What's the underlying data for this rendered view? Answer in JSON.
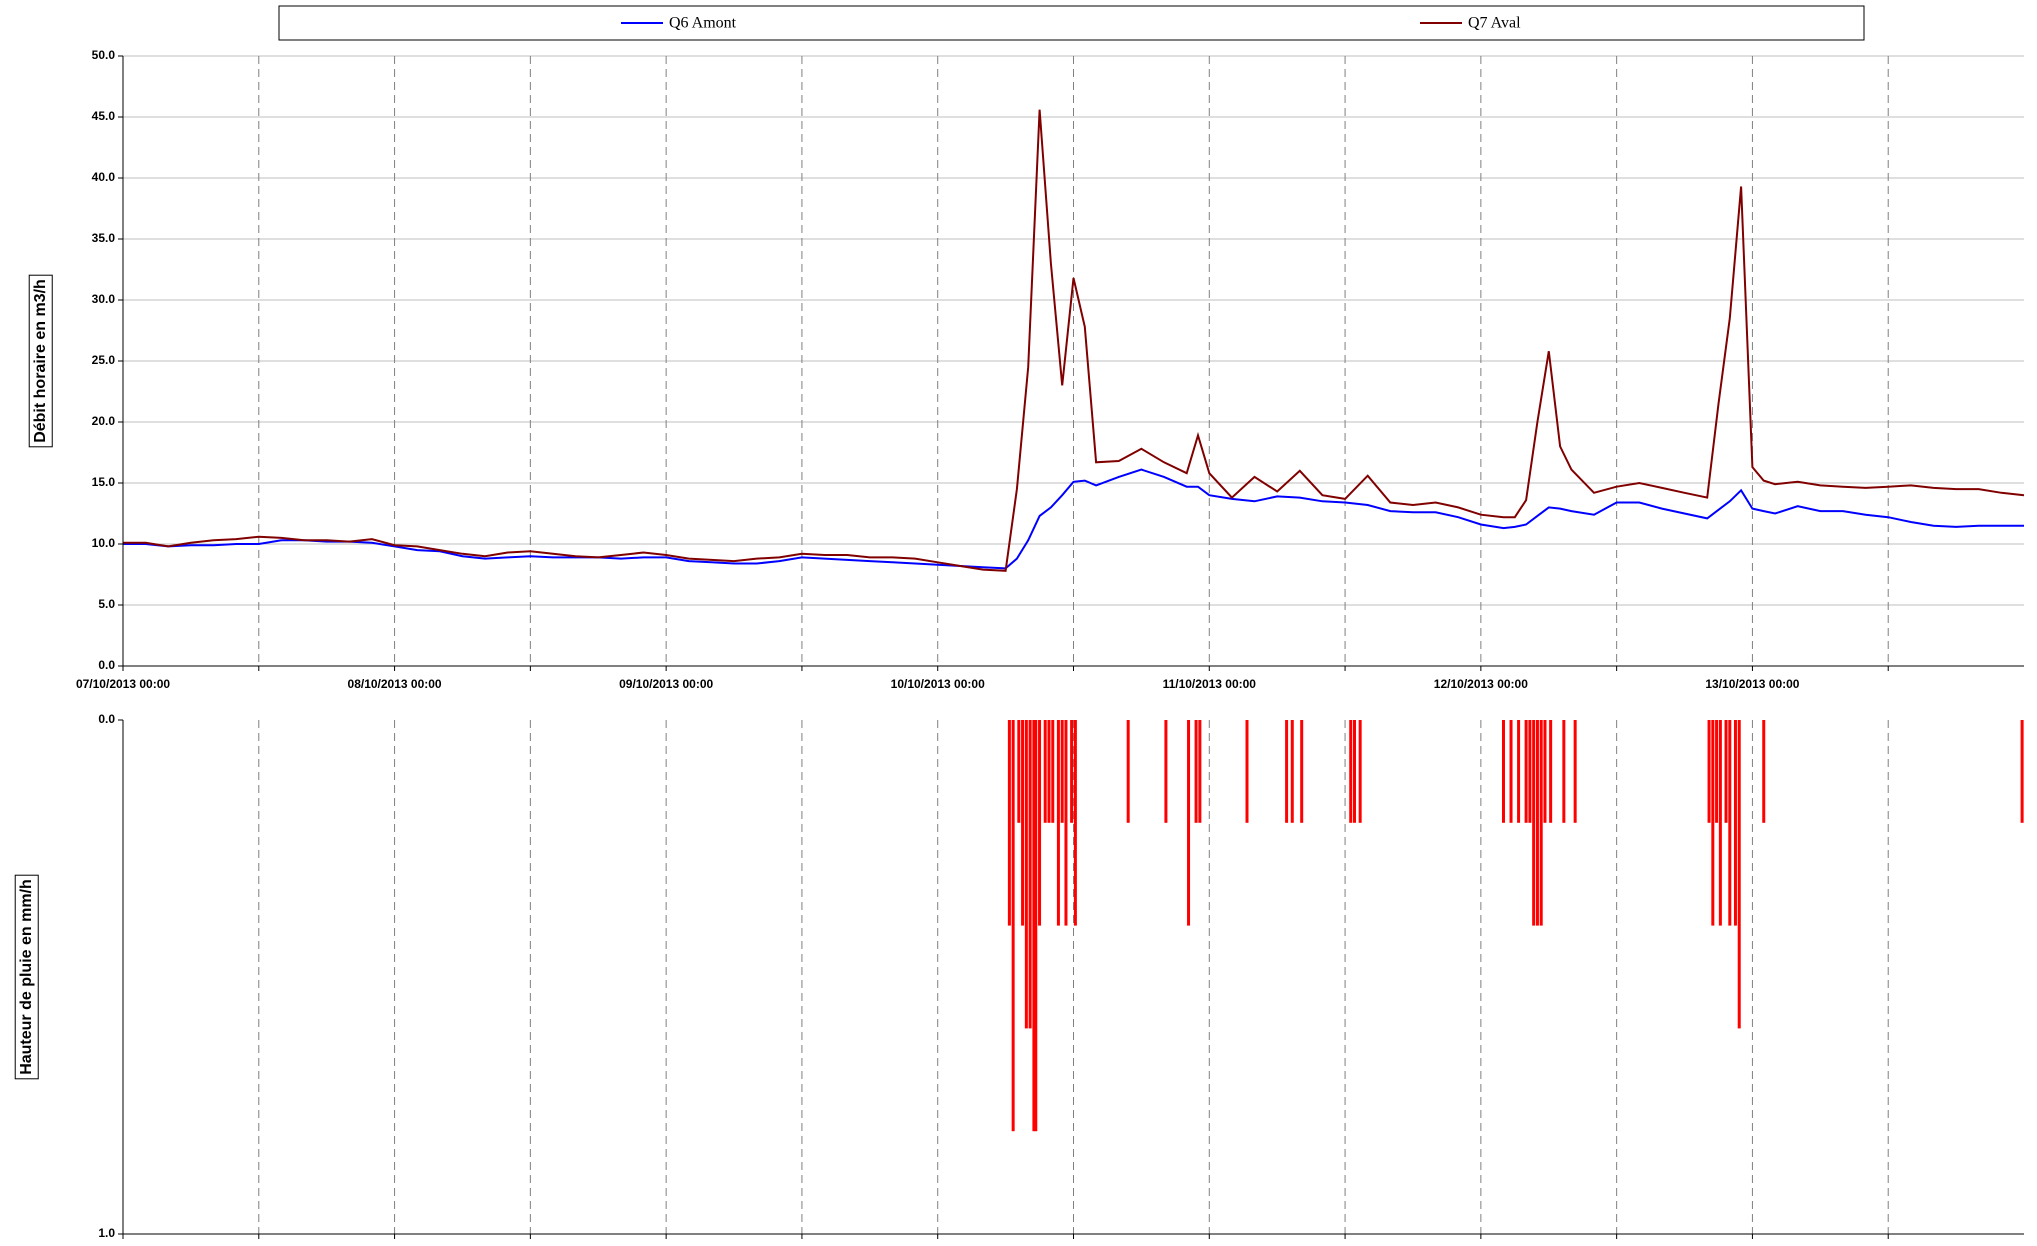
{
  "chart_data": [
    {
      "type": "line",
      "ylabel": "Débit horaire en m3/h",
      "legend": "top",
      "grid": true,
      "x": [
        "07/10/2013 00:00",
        "07/10/2013 02:00",
        "07/10/2013 04:00",
        "07/10/2013 06:00",
        "07/10/2013 08:00",
        "07/10/2013 10:00",
        "07/10/2013 12:00",
        "07/10/2013 14:00",
        "07/10/2013 16:00",
        "07/10/2013 18:00",
        "07/10/2013 20:00",
        "07/10/2013 22:00",
        "08/10/2013 00:00",
        "08/10/2013 02:00",
        "08/10/2013 04:00",
        "08/10/2013 06:00",
        "08/10/2013 08:00",
        "08/10/2013 10:00",
        "08/10/2013 12:00",
        "08/10/2013 14:00",
        "08/10/2013 16:00",
        "08/10/2013 18:00",
        "08/10/2013 20:00",
        "08/10/2013 22:00",
        "09/10/2013 00:00",
        "09/10/2013 02:00",
        "09/10/2013 04:00",
        "09/10/2013 06:00",
        "09/10/2013 08:00",
        "09/10/2013 10:00",
        "09/10/2013 12:00",
        "09/10/2013 14:00",
        "09/10/2013 16:00",
        "09/10/2013 18:00",
        "09/10/2013 20:00",
        "09/10/2013 22:00",
        "10/10/2013 00:00",
        "10/10/2013 02:00",
        "10/10/2013 04:00",
        "10/10/2013 06:00",
        "10/10/2013 07:00",
        "10/10/2013 08:00",
        "10/10/2013 09:00",
        "10/10/2013 10:00",
        "10/10/2013 11:00",
        "10/10/2013 12:00",
        "10/10/2013 13:00",
        "10/10/2013 14:00",
        "10/10/2013 16:00",
        "10/10/2013 18:00",
        "10/10/2013 20:00",
        "10/10/2013 22:00",
        "10/10/2013 23:00",
        "11/10/2013 00:00",
        "11/10/2013 02:00",
        "11/10/2013 04:00",
        "11/10/2013 06:00",
        "11/10/2013 08:00",
        "11/10/2013 10:00",
        "11/10/2013 12:00",
        "11/10/2013 14:00",
        "11/10/2013 16:00",
        "11/10/2013 18:00",
        "11/10/2013 20:00",
        "11/10/2013 22:00",
        "12/10/2013 00:00",
        "12/10/2013 02:00",
        "12/10/2013 03:00",
        "12/10/2013 04:00",
        "12/10/2013 05:00",
        "12/10/2013 06:00",
        "12/10/2013 07:00",
        "12/10/2013 08:00",
        "12/10/2013 10:00",
        "12/10/2013 12:00",
        "12/10/2013 14:00",
        "12/10/2013 16:00",
        "12/10/2013 18:00",
        "12/10/2013 20:00",
        "12/10/2013 21:00",
        "12/10/2013 22:00",
        "12/10/2013 23:00",
        "13/10/2013 00:00",
        "13/10/2013 01:00",
        "13/10/2013 02:00",
        "13/10/2013 04:00",
        "13/10/2013 06:00",
        "13/10/2013 08:00",
        "13/10/2013 10:00",
        "13/10/2013 12:00",
        "13/10/2013 14:00",
        "13/10/2013 16:00",
        "13/10/2013 18:00",
        "13/10/2013 20:00",
        "13/10/2013 22:00",
        "14/10/2013 00:00"
      ],
      "series": [
        {
          "name": "Q6 Amont",
          "color": "#0000ff",
          "values": [
            10.0,
            10.0,
            9.8,
            9.9,
            9.9,
            10.0,
            10.0,
            10.3,
            10.3,
            10.2,
            10.2,
            10.1,
            9.8,
            9.5,
            9.4,
            9.0,
            8.8,
            8.9,
            9.0,
            8.9,
            8.9,
            8.9,
            8.8,
            8.9,
            8.9,
            8.6,
            8.5,
            8.4,
            8.4,
            8.6,
            8.9,
            8.8,
            8.7,
            8.6,
            8.5,
            8.4,
            8.3,
            8.2,
            8.1,
            8.0,
            8.8,
            10.3,
            12.3,
            13.0,
            14.0,
            15.1,
            15.2,
            14.8,
            15.5,
            16.1,
            15.5,
            14.7,
            14.7,
            14.0,
            13.7,
            13.5,
            13.9,
            13.8,
            13.5,
            13.4,
            13.2,
            12.7,
            12.6,
            12.6,
            12.2,
            11.6,
            11.3,
            11.4,
            11.6,
            12.3,
            13.0,
            12.9,
            12.7,
            12.4,
            13.4,
            13.4,
            12.9,
            12.5,
            12.1,
            12.8,
            13.5,
            14.4,
            12.9,
            12.7,
            12.5,
            13.1,
            12.7,
            12.7,
            12.4,
            12.2,
            11.8,
            11.5,
            11.4,
            11.5,
            11.5,
            11.5
          ]
        },
        {
          "name": "Q7 Aval",
          "color": "#800000",
          "values": [
            10.1,
            10.1,
            9.8,
            10.1,
            10.3,
            10.4,
            10.6,
            10.5,
            10.3,
            10.3,
            10.2,
            10.4,
            9.9,
            9.8,
            9.5,
            9.2,
            9.0,
            9.3,
            9.4,
            9.2,
            9.0,
            8.9,
            9.1,
            9.3,
            9.1,
            8.8,
            8.7,
            8.6,
            8.8,
            8.9,
            9.2,
            9.1,
            9.1,
            8.9,
            8.9,
            8.8,
            8.5,
            8.2,
            7.9,
            7.8,
            14.5,
            24.5,
            45.6,
            33.0,
            23.0,
            31.8,
            27.8,
            16.7,
            16.8,
            17.8,
            16.7,
            15.8,
            18.9,
            15.8,
            13.8,
            15.5,
            14.3,
            16.0,
            14.0,
            13.7,
            15.6,
            13.4,
            13.2,
            13.4,
            13.0,
            12.4,
            12.2,
            12.2,
            13.6,
            20.0,
            25.8,
            18.0,
            16.1,
            14.2,
            14.7,
            15.0,
            14.6,
            14.2,
            13.8,
            21.5,
            28.5,
            39.3,
            16.3,
            15.2,
            14.9,
            15.1,
            14.8,
            14.7,
            14.6,
            14.7,
            14.8,
            14.6,
            14.5,
            14.5,
            14.2,
            14.0
          ]
        }
      ],
      "xlim": [
        "07/10/2013 00:00",
        "14/10/2013 00:00"
      ],
      "xticks": [
        "07/10/2013 00:00",
        "08/10/2013 00:00",
        "09/10/2013 00:00",
        "10/10/2013 00:00",
        "11/10/2013 00:00",
        "12/10/2013 00:00",
        "13/10/2013 00:00"
      ],
      "ylim": [
        0,
        50
      ],
      "yticks": [
        {
          "value": 0,
          "label": "0.0"
        },
        {
          "value": 5,
          "label": "5.0"
        },
        {
          "value": 10,
          "label": "10.0"
        },
        {
          "value": 15,
          "label": "15.0"
        },
        {
          "value": 20,
          "label": "20.0"
        },
        {
          "value": 25,
          "label": "25.0"
        },
        {
          "value": 30,
          "label": "30.0"
        },
        {
          "value": 35,
          "label": "35.0"
        },
        {
          "value": 40,
          "label": "40.0"
        },
        {
          "value": 45,
          "label": "45.0"
        },
        {
          "value": 50,
          "label": "50.0"
        }
      ]
    },
    {
      "type": "bar",
      "ylabel": "Hauteur de pluie en mm/h",
      "color": "#ff0000",
      "y_inverted": true,
      "grid": true,
      "x": [
        "10/10/2013 06:20",
        "10/10/2013 06:40",
        "10/10/2013 07:10",
        "10/10/2013 07:30",
        "10/10/2013 07:50",
        "10/10/2013 08:10",
        "10/10/2013 08:30",
        "10/10/2013 08:40",
        "10/10/2013 09:00",
        "10/10/2013 09:30",
        "10/10/2013 09:50",
        "10/10/2013 10:10",
        "10/10/2013 10:40",
        "10/10/2013 11:00",
        "10/10/2013 11:20",
        "10/10/2013 11:50",
        "10/10/2013 12:10",
        "10/10/2013 16:50",
        "10/10/2013 20:10",
        "10/10/2013 22:10",
        "10/10/2013 22:50",
        "10/10/2013 23:10",
        "11/10/2013 03:20",
        "11/10/2013 06:50",
        "11/10/2013 07:20",
        "11/10/2013 08:10",
        "11/10/2013 12:30",
        "11/10/2013 12:50",
        "11/10/2013 13:20",
        "12/10/2013 02:00",
        "12/10/2013 02:40",
        "12/10/2013 03:20",
        "12/10/2013 04:00",
        "12/10/2013 04:20",
        "12/10/2013 04:40",
        "12/10/2013 05:00",
        "12/10/2013 05:20",
        "12/10/2013 05:40",
        "12/10/2013 06:10",
        "12/10/2013 07:20",
        "12/10/2013 08:20",
        "12/10/2013 20:10",
        "12/10/2013 20:30",
        "12/10/2013 20:50",
        "12/10/2013 21:10",
        "12/10/2013 21:40",
        "12/10/2013 22:00",
        "12/10/2013 22:30",
        "12/10/2013 22:50",
        "13/10/2013 01:00",
        "13/10/2013 23:50"
      ],
      "values": [
        0.4,
        0.8,
        0.2,
        0.4,
        0.6,
        0.6,
        0.8,
        0.8,
        0.4,
        0.2,
        0.2,
        0.2,
        0.4,
        0.2,
        0.4,
        0.2,
        0.4,
        0.2,
        0.2,
        0.4,
        0.2,
        0.2,
        0.2,
        0.2,
        0.2,
        0.2,
        0.2,
        0.2,
        0.2,
        0.2,
        0.2,
        0.2,
        0.2,
        0.2,
        0.4,
        0.4,
        0.4,
        0.2,
        0.2,
        0.2,
        0.2,
        0.2,
        0.4,
        0.2,
        0.4,
        0.2,
        0.4,
        0.4,
        0.6,
        0.2,
        0.2
      ],
      "xlim": [
        "07/10/2013 00:00",
        "14/10/2013 00:00"
      ],
      "ylim": [
        0,
        1
      ],
      "yticks": [
        {
          "value": 0,
          "label": "0.0"
        },
        {
          "value": 1,
          "label": "1.0"
        }
      ]
    }
  ]
}
